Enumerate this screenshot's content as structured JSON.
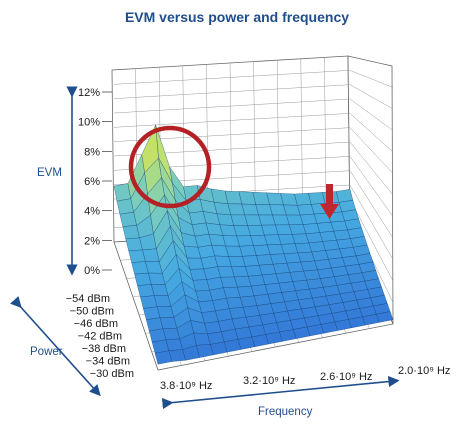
{
  "chart_data": {
    "type": "surface",
    "title": "EVM versus power and frequency",
    "zlabel": "EVM",
    "ylabel": "Power",
    "xlabel": "Frequency",
    "zlim": [
      0,
      12
    ],
    "z_ticks": [
      "12%",
      "10%",
      "8%",
      "6%",
      "4%",
      "2%",
      "0%"
    ],
    "power_ticks": [
      "−54 dBm",
      "−50 dBm",
      "−46 dBm",
      "−42 dBm",
      "−38 dBm",
      "−34 dBm",
      "−30 dBm"
    ],
    "frequency_ticks": [
      "3.8·10⁹ Hz",
      "3.2·10⁹ Hz",
      "2.6·10⁹ Hz",
      "2.0·10⁹ Hz"
    ],
    "power_range_dbm": [
      -54,
      -30
    ],
    "frequency_range_ghz": [
      3.8,
      2.0
    ],
    "evm_back_edge_percent": [
      3.9,
      3.8,
      3.6,
      8.0,
      3.7,
      3.5,
      3.6,
      3.3,
      3.1,
      3.0,
      2.9,
      2.8,
      2.7,
      2.6,
      2.6,
      2.6,
      2.6,
      2.7
    ],
    "evm_front_edge_percent": [
      0.4,
      0.4,
      0.3,
      0.3,
      0.3,
      0.3,
      0.3,
      0.3,
      0.3,
      0.3,
      0.3,
      0.3,
      0.3,
      0.3,
      0.3,
      0.3,
      0.3,
      0.3
    ],
    "peak": {
      "frequency_ghz": 3.5,
      "power_dbm": -54,
      "evm_percent": 8.0
    },
    "grid": true,
    "colors": {
      "title": "#1f4e8c",
      "axis_arrows": "#1f4e8c",
      "highlight_circle": "#b52025",
      "marker_arrow": "#c0272d",
      "surface_low": "#2f6fd6",
      "surface_high": "#d8e35a"
    }
  }
}
